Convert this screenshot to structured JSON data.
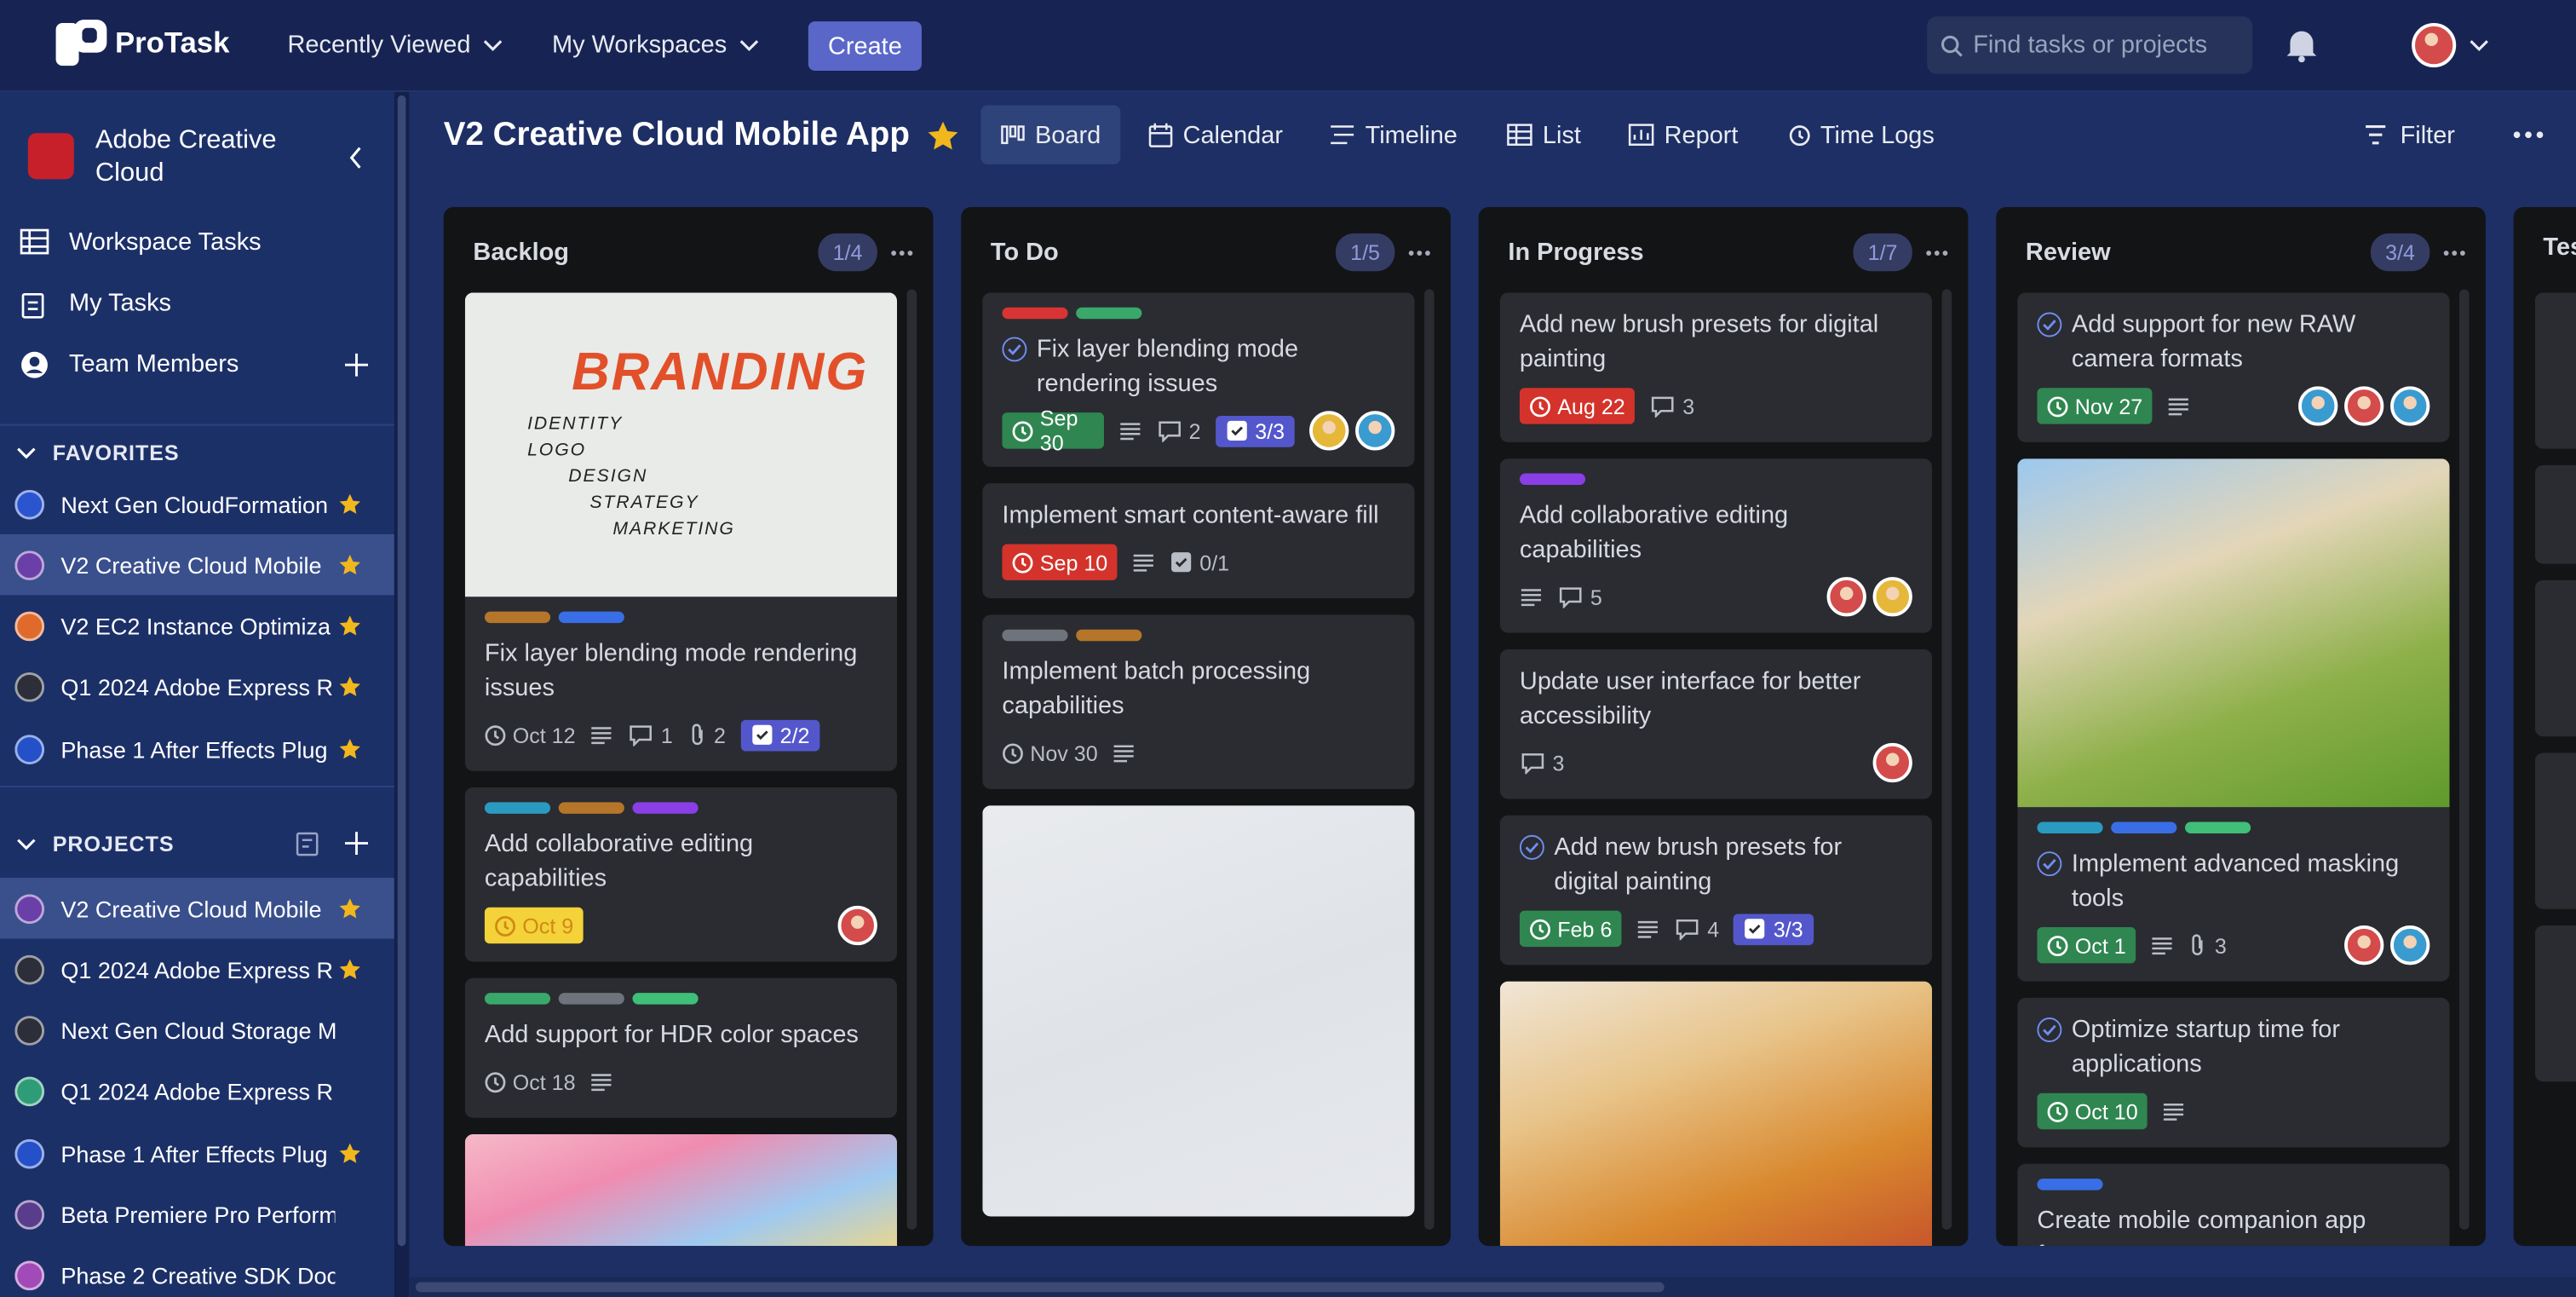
{
  "nav": {
    "brand": "ProTask",
    "menus": [
      "Recently Viewed",
      "My Workspaces"
    ],
    "create": "Create",
    "search_placeholder": "Find tasks or projects"
  },
  "sidebar": {
    "workspace": "Adobe Creative Cloud",
    "links": [
      "Workspace Tasks",
      "My Tasks",
      "Team Members"
    ],
    "favorites_title": "FAVORITES",
    "favorites": [
      {
        "name": "Next Gen CloudFormation",
        "color": "#2b55cf",
        "starred": true
      },
      {
        "name": "V2 Creative Cloud Mobile",
        "color": "#6b3fa8",
        "starred": true,
        "active": true
      },
      {
        "name": "V2 EC2 Instance Optimiza",
        "color": "#e06a2c",
        "starred": true
      },
      {
        "name": "Q1 2024 Adobe Express R",
        "color": "#2c2f3a",
        "starred": true
      },
      {
        "name": "Phase 1 After Effects Plug",
        "color": "#2451c8",
        "starred": true
      }
    ],
    "projects_title": "PROJECTS",
    "projects": [
      {
        "name": "V2 Creative Cloud Mobile",
        "color": "#6b3fa8",
        "starred": true,
        "active": true
      },
      {
        "name": "Q1 2024 Adobe Express R",
        "color": "#2c2f3a",
        "starred": true
      },
      {
        "name": "Next Gen Cloud Storage M",
        "color": "#2c2f3a",
        "starred": false
      },
      {
        "name": "Q1 2024 Adobe Express R",
        "color": "#2f9c78",
        "starred": false
      },
      {
        "name": "Phase 1 After Effects Plug",
        "color": "#2451c8",
        "starred": true
      },
      {
        "name": "Beta Premiere Pro Perform",
        "color": "#5a3c8c",
        "starred": false
      },
      {
        "name": "Phase 2 Creative SDK Doc",
        "color": "#a14ab8",
        "starred": false
      }
    ]
  },
  "board": {
    "title": "V2 Creative Cloud Mobile App",
    "views": [
      "Board",
      "Calendar",
      "Timeline",
      "List",
      "Report",
      "Time Logs"
    ],
    "active_view": 0,
    "filter": "Filter",
    "columns": [
      {
        "name": "Backlog",
        "count": "1/4",
        "cards": [
          {
            "cover": {
              "title": "BRANDING",
              "lines": [
                "IDENTITY",
                "LOGO",
                "DESIGN",
                "STRATEGY",
                "MARKETING"
              ]
            },
            "labels": [
              "#b5762a",
              "#3a6ee6"
            ],
            "title": "Fix layer blending mode rendering issues",
            "due": "Oct 12",
            "due_style": "plain",
            "description": true,
            "comments": 1,
            "attachments": 2,
            "checklist": "2/2",
            "checklist_complete": true
          },
          {
            "labels": [
              "#2a9ac0",
              "#b5762a",
              "#8a3ee6"
            ],
            "title": "Add collaborative editing capabilities",
            "due": "Oct 9",
            "due_style": "yellow",
            "avatars": [
              "#d44b4b"
            ]
          },
          {
            "labels": [
              "#3aa86a",
              "#6f737c",
              "#3fbf78"
            ],
            "title": "Add support for HDR color spaces",
            "due": "Oct 18",
            "due_style": "plain",
            "description": true
          },
          {
            "cover": {
              "colors": [
                "#f6b9c9",
                "#f08cb0",
                "#9fc9f0",
                "#f9d97a"
              ]
            }
          }
        ]
      },
      {
        "name": "To Do",
        "count": "1/5",
        "cards": [
          {
            "labels": [
              "#d93434",
              "#3aa86a"
            ],
            "checked": true,
            "title": "Fix layer blending mode rendering issues",
            "due": "Sep 30",
            "due_style": "green",
            "description": true,
            "comments": 2,
            "checklist": "3/3",
            "checklist_complete": true,
            "avatars": [
              "#e5b83a",
              "#3a9bd0"
            ]
          },
          {
            "title": "Implement smart content-aware fill",
            "due": "Sep 10",
            "due_style": "red",
            "description": true,
            "checklist": "0/1",
            "checklist_complete": false
          },
          {
            "labels": [
              "#6f737c",
              "#b5762a"
            ],
            "title": "Implement batch processing capabilities",
            "due": "Nov 30",
            "due_style": "plain",
            "description": true
          },
          {
            "cover": {
              "colors": [
                "#e9ebee",
                "#dfe3e8",
                "#e6e8ec"
              ]
            }
          }
        ]
      },
      {
        "name": "In Progress",
        "count": "1/7",
        "cards": [
          {
            "title": "Add new brush presets for digital painting",
            "due": "Aug 22",
            "due_style": "red",
            "comments": 3
          },
          {
            "labels": [
              "#8a3ee6"
            ],
            "title": "Add collaborative editing capabilities",
            "description": true,
            "comments": 5,
            "avatars": [
              "#d44b4b",
              "#e5b83a"
            ]
          },
          {
            "title": "Update user interface for better accessibility",
            "comments": 3,
            "avatars": [
              "#d44b4b"
            ]
          },
          {
            "checked": true,
            "title": "Add new brush presets for digital painting",
            "due": "Feb 6",
            "due_style": "green",
            "description": true,
            "comments": 4,
            "checklist": "3/3",
            "checklist_complete": true
          },
          {
            "cover": {
              "colors": [
                "#f0e6d6",
                "#e8c48a",
                "#d9892f",
                "#c24a2a"
              ]
            }
          }
        ]
      },
      {
        "name": "Review",
        "count": "3/4",
        "cards": [
          {
            "checked": true,
            "title": "Add support for new RAW camera formats",
            "due": "Nov 27",
            "due_style": "green",
            "description": true,
            "avatars": [
              "#3a9bd0",
              "#d44b4b",
              "#3a9bd0"
            ]
          },
          {
            "cover": {
              "colors": [
                "#9cc8ef",
                "#e3d6b8",
                "#8eb04a",
                "#5f9a2c"
              ]
            },
            "labels": [
              "#2a9ac0",
              "#3a6ee6",
              "#3fbf78"
            ],
            "checked": true,
            "title": "Implement advanced masking tools",
            "due": "Oct 1",
            "due_style": "green",
            "description": true,
            "attachments": 3,
            "avatars": [
              "#d44b4b",
              "#3a9bd0"
            ]
          },
          {
            "checked": true,
            "title": "Optimize startup time for applications",
            "due": "Oct 10",
            "due_style": "green",
            "description": true
          },
          {
            "labels": [
              "#3a6ee6"
            ],
            "title": "Create mobile companion app features"
          }
        ]
      },
      {
        "name": "Testing",
        "cards": []
      }
    ]
  }
}
